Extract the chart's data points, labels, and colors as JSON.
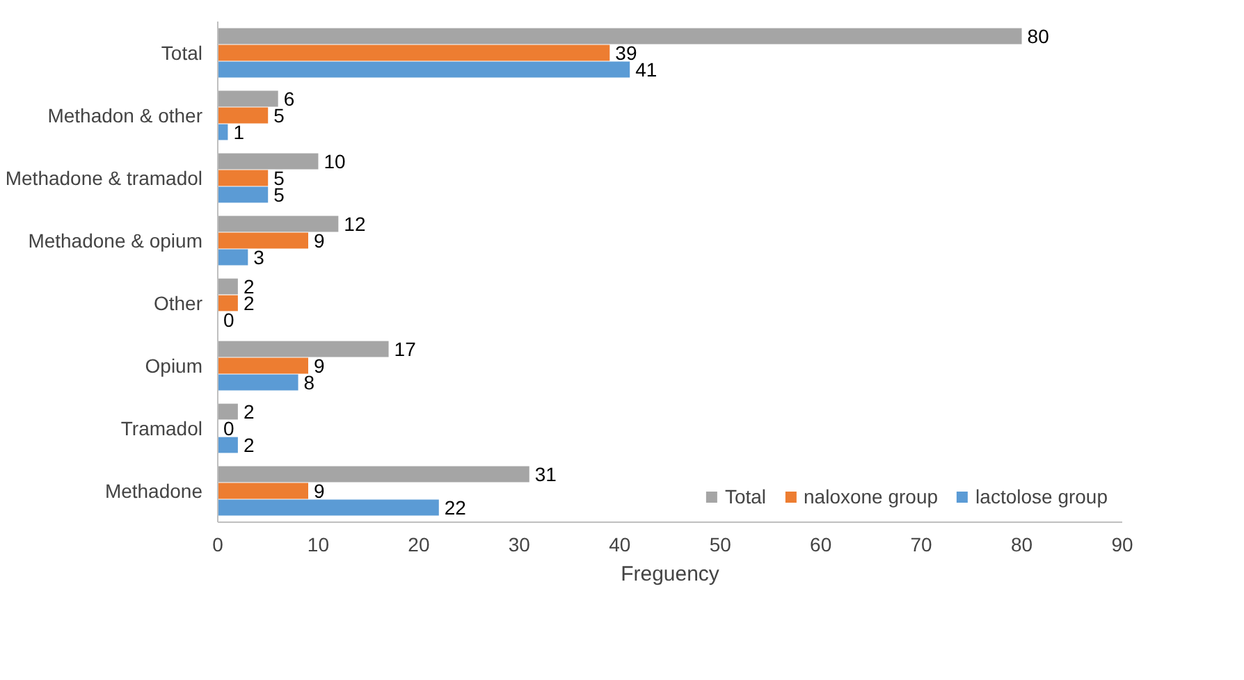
{
  "chart_data": {
    "type": "bar",
    "orientation": "horizontal",
    "xlabel": "Freguency",
    "categories": [
      "Total",
      "Methadon & other",
      "Methadone & tramadol",
      "Methadone & opium",
      "Other",
      "Opium",
      "Tramadol",
      "Methadone"
    ],
    "series": [
      {
        "name": "Total",
        "color": "#a5a5a5",
        "values": [
          80,
          6,
          10,
          12,
          2,
          17,
          2,
          31
        ]
      },
      {
        "name": "naloxone group",
        "color": "#ed7d31",
        "values": [
          39,
          5,
          5,
          9,
          2,
          9,
          0,
          9
        ]
      },
      {
        "name": "lactolose group",
        "color": "#5b9bd5",
        "values": [
          41,
          1,
          5,
          3,
          0,
          8,
          2,
          22
        ]
      }
    ],
    "xlim": [
      0,
      90
    ],
    "xticks": [
      0,
      10,
      20,
      30,
      40,
      50,
      60,
      70,
      80,
      90
    ],
    "data_labels": true,
    "grid": false,
    "legend": "bottom right"
  }
}
